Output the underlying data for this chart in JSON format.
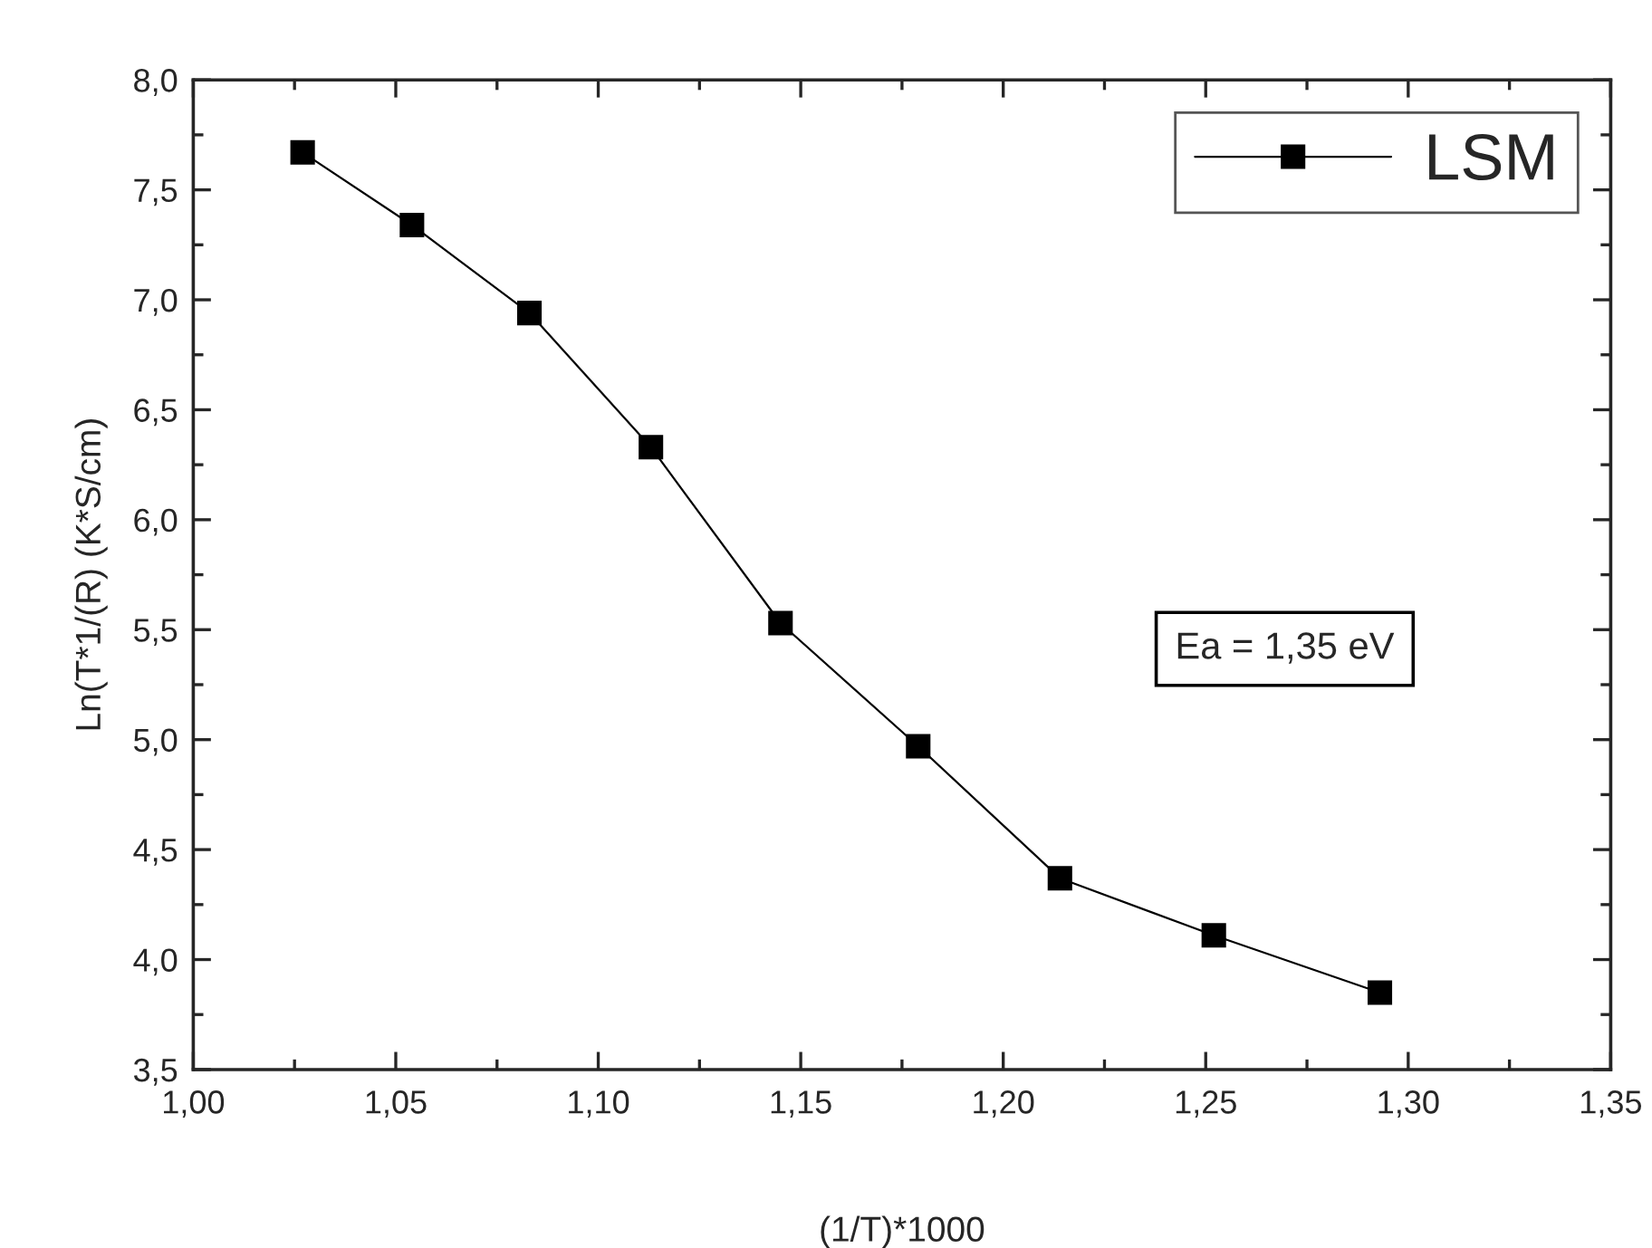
{
  "chart_data": {
    "type": "line",
    "xlabel": "(1/T)*1000",
    "ylabel": "Ln(T*1/(R) (K*S/cm)",
    "x": [
      1.027,
      1.054,
      1.083,
      1.113,
      1.145,
      1.179,
      1.214,
      1.252,
      1.293
    ],
    "series": [
      {
        "name": "LSM",
        "color": "#000000",
        "values": [
          7.67,
          7.34,
          6.94,
          6.33,
          5.53,
          4.97,
          4.37,
          4.11,
          3.85
        ]
      }
    ],
    "xlim": [
      1.0,
      1.35
    ],
    "xticks": [
      {
        "value": 1.0,
        "label": "1,00"
      },
      {
        "value": 1.05,
        "label": "1,05"
      },
      {
        "value": 1.1,
        "label": "1,10"
      },
      {
        "value": 1.15,
        "label": "1,15"
      },
      {
        "value": 1.2,
        "label": "1,20"
      },
      {
        "value": 1.25,
        "label": "1,25"
      },
      {
        "value": 1.3,
        "label": "1,30"
      },
      {
        "value": 1.35,
        "label": "1,35"
      }
    ],
    "ylim": [
      3.5,
      8.0
    ],
    "yticks": [
      {
        "value": 3.5,
        "label": "3,5"
      },
      {
        "value": 4.0,
        "label": "4,0"
      },
      {
        "value": 4.5,
        "label": "4,5"
      },
      {
        "value": 5.0,
        "label": "5,0"
      },
      {
        "value": 5.5,
        "label": "5,5"
      },
      {
        "value": 6.0,
        "label": "6,0"
      },
      {
        "value": 6.5,
        "label": "6,5"
      },
      {
        "value": 7.0,
        "label": "7,0"
      },
      {
        "value": 7.5,
        "label": "7,5"
      },
      {
        "value": 8.0,
        "label": "8,0"
      }
    ],
    "annotations": [
      "Ea = 1,35 eV"
    ],
    "legend": "top right",
    "marker": "square",
    "line_style": "solid",
    "grid": false
  }
}
